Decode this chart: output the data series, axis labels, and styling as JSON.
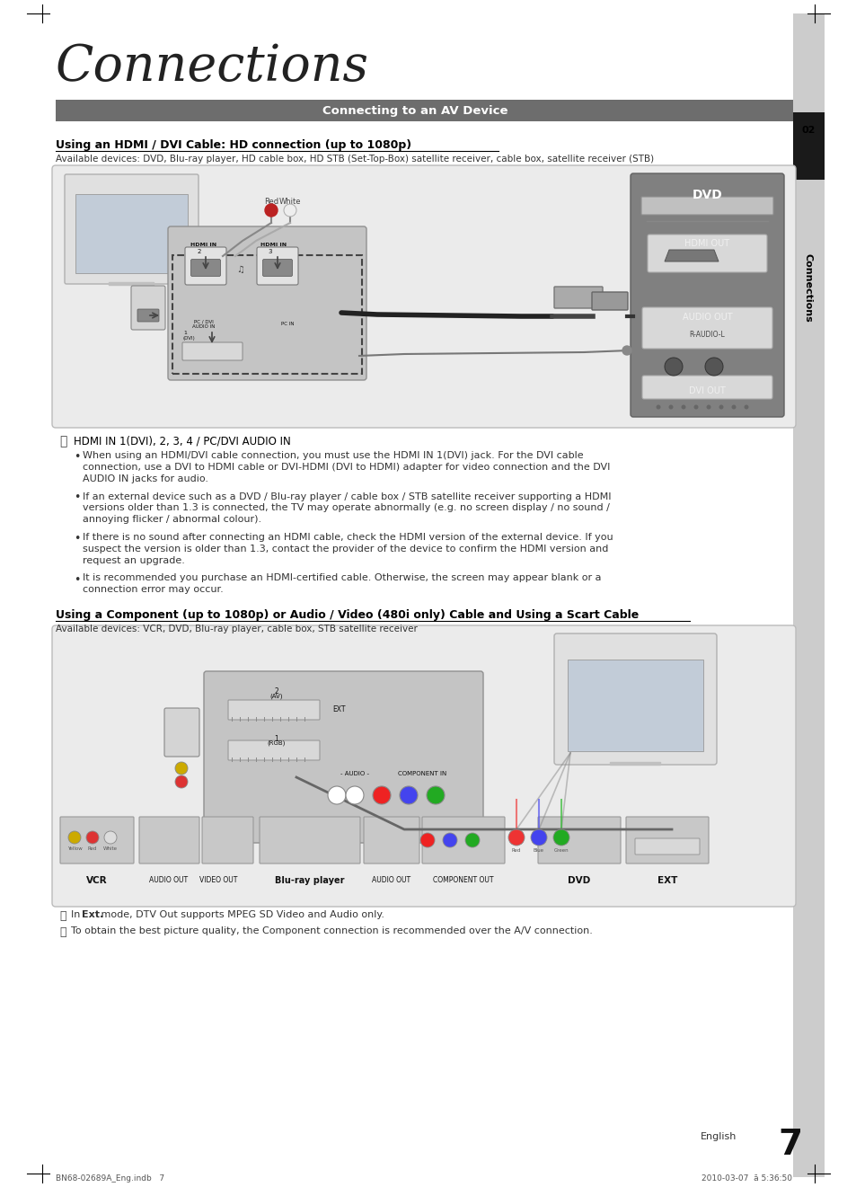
{
  "title": "Connections",
  "section_header": "Connecting to an AV Device",
  "section_num": "02",
  "section_label": "Connections",
  "subsection1_title": "Using an HDMI / DVI Cable: HD connection (up to 1080p)",
  "subsection1_devices": "Available devices: DVD, Blu-ray player, HD cable box, HD STB (Set-Top-Box) satellite receiver, cable box, satellite receiver (STB)",
  "hdmi_note_title": "HDMI IN 1(DVI), 2, 3, 4 / PC/DVI AUDIO IN",
  "hdmi_bullets": [
    "When using an HDMI/DVI cable connection, you must use the HDMI IN 1(DVI) jack. For the DVI cable\nconnection, use a DVI to HDMI cable or DVI-HDMI (DVI to HDMI) adapter for video connection and the DVI\nAUDIO IN jacks for audio.",
    "If an external device such as a DVD / Blu-ray player / cable box / STB satellite receiver supporting a HDMI\nversions older than 1.3 is connected, the TV may operate abnormally (e.g. no screen display / no sound /\nannoying flicker / abnormal colour).",
    "If there is no sound after connecting an HDMI cable, check the HDMI version of the external device. If you\nsuspect the version is older than 1.3, contact the provider of the device to confirm the HDMI version and\nrequest an upgrade.",
    "It is recommended you purchase an HDMI-certified cable. Otherwise, the screen may appear blank or a\nconnection error may occur."
  ],
  "subsection2_title": "Using a Component (up to 1080p) or Audio / Video (480i only) Cable and Using a Scart Cable",
  "subsection2_devices": "Available devices: VCR, DVD, Blu-ray player, cable box, STB satellite receiver",
  "ext_note1": "In Ext. mode, DTV Out supports MPEG SD Video and Audio only.",
  "ext_note2": "To obtain the best picture quality, the Component connection is recommended over the A/V connection.",
  "footer_left": "BN68-02689A_Eng.indb   7",
  "footer_right": "2010-03-07  ā 5:36:50",
  "page_num": "7",
  "page_lang": "English",
  "bg_color": "#ffffff",
  "header_bar_color": "#6d6d6d",
  "tab_dark_color": "#1a1a1a",
  "tab_light_color": "#d0d0d0",
  "diagram_bg": "#ebebeb",
  "diagram_border": "#bbbbbb",
  "dvd_panel_bg": "#888888",
  "dvd_panel_border": "#666666",
  "white_box_bg": "#e8e8e8",
  "port_bg": "#d8d8d8",
  "port_border": "#999999"
}
